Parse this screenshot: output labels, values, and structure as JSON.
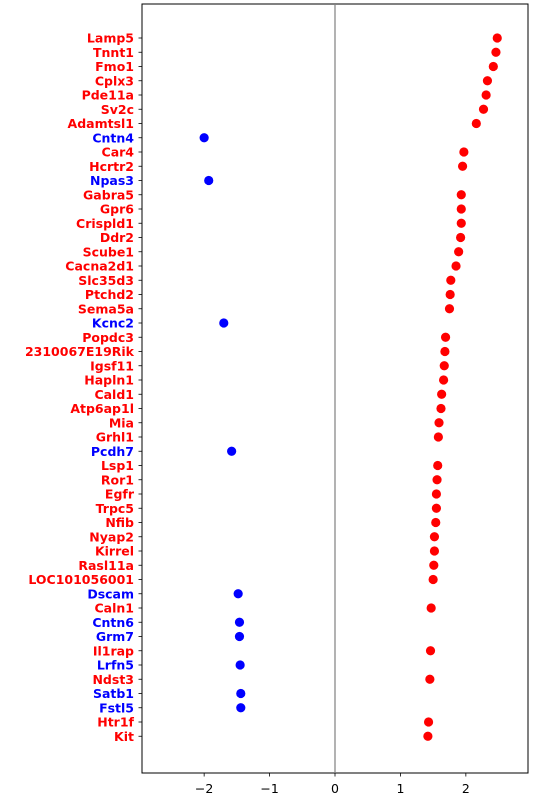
{
  "chart_data": {
    "type": "scatter",
    "title": "",
    "xlabel": "",
    "ylabel": "",
    "xlim": [
      -2.95,
      2.95
    ],
    "x_ticks": [
      -2,
      -1,
      0,
      1,
      2
    ],
    "x_tick_labels": [
      "−2",
      "−1",
      "0",
      "1",
      "2"
    ],
    "reference_line_x": 0,
    "grid": false,
    "colors": {
      "positive": "#ff0000",
      "negative": "#0000ff",
      "reference_line": "#808080",
      "axis": "#000000"
    },
    "categories": [
      "Lamp5",
      "Tnnt1",
      "Fmo1",
      "Cplx3",
      "Pde11a",
      "Sv2c",
      "Adamtsl1",
      "Cntn4",
      "Car4",
      "Hcrtr2",
      "Npas3",
      "Gabra5",
      "Gpr6",
      "Crispld1",
      "Ddr2",
      "Scube1",
      "Cacna2d1",
      "Slc35d3",
      "Ptchd2",
      "Sema5a",
      "Kcnc2",
      "Popdc3",
      "2310067E19Rik",
      "Igsf11",
      "Hapln1",
      "Cald1",
      "Atp6ap1l",
      "Mia",
      "Grhl1",
      "Pcdh7",
      "Lsp1",
      "Ror1",
      "Egfr",
      "Trpc5",
      "Nfib",
      "Nyap2",
      "Kirrel",
      "Rasl11a",
      "LOC101056001",
      "Dscam",
      "Caln1",
      "Cntn6",
      "Grm7",
      "Il1rap",
      "Lrfn5",
      "Ndst3",
      "Satb1",
      "Fstl5",
      "Htr1f",
      "Kit"
    ],
    "values": [
      2.48,
      2.46,
      2.42,
      2.33,
      2.31,
      2.27,
      2.16,
      -2.0,
      1.97,
      1.95,
      -1.93,
      1.93,
      1.93,
      1.93,
      1.92,
      1.89,
      1.85,
      1.77,
      1.76,
      1.75,
      -1.7,
      1.69,
      1.68,
      1.67,
      1.66,
      1.63,
      1.62,
      1.59,
      1.58,
      -1.58,
      1.57,
      1.56,
      1.55,
      1.55,
      1.54,
      1.52,
      1.52,
      1.51,
      1.5,
      -1.48,
      1.47,
      -1.46,
      -1.46,
      1.46,
      -1.45,
      1.45,
      -1.44,
      -1.44,
      1.43,
      1.42
    ]
  }
}
